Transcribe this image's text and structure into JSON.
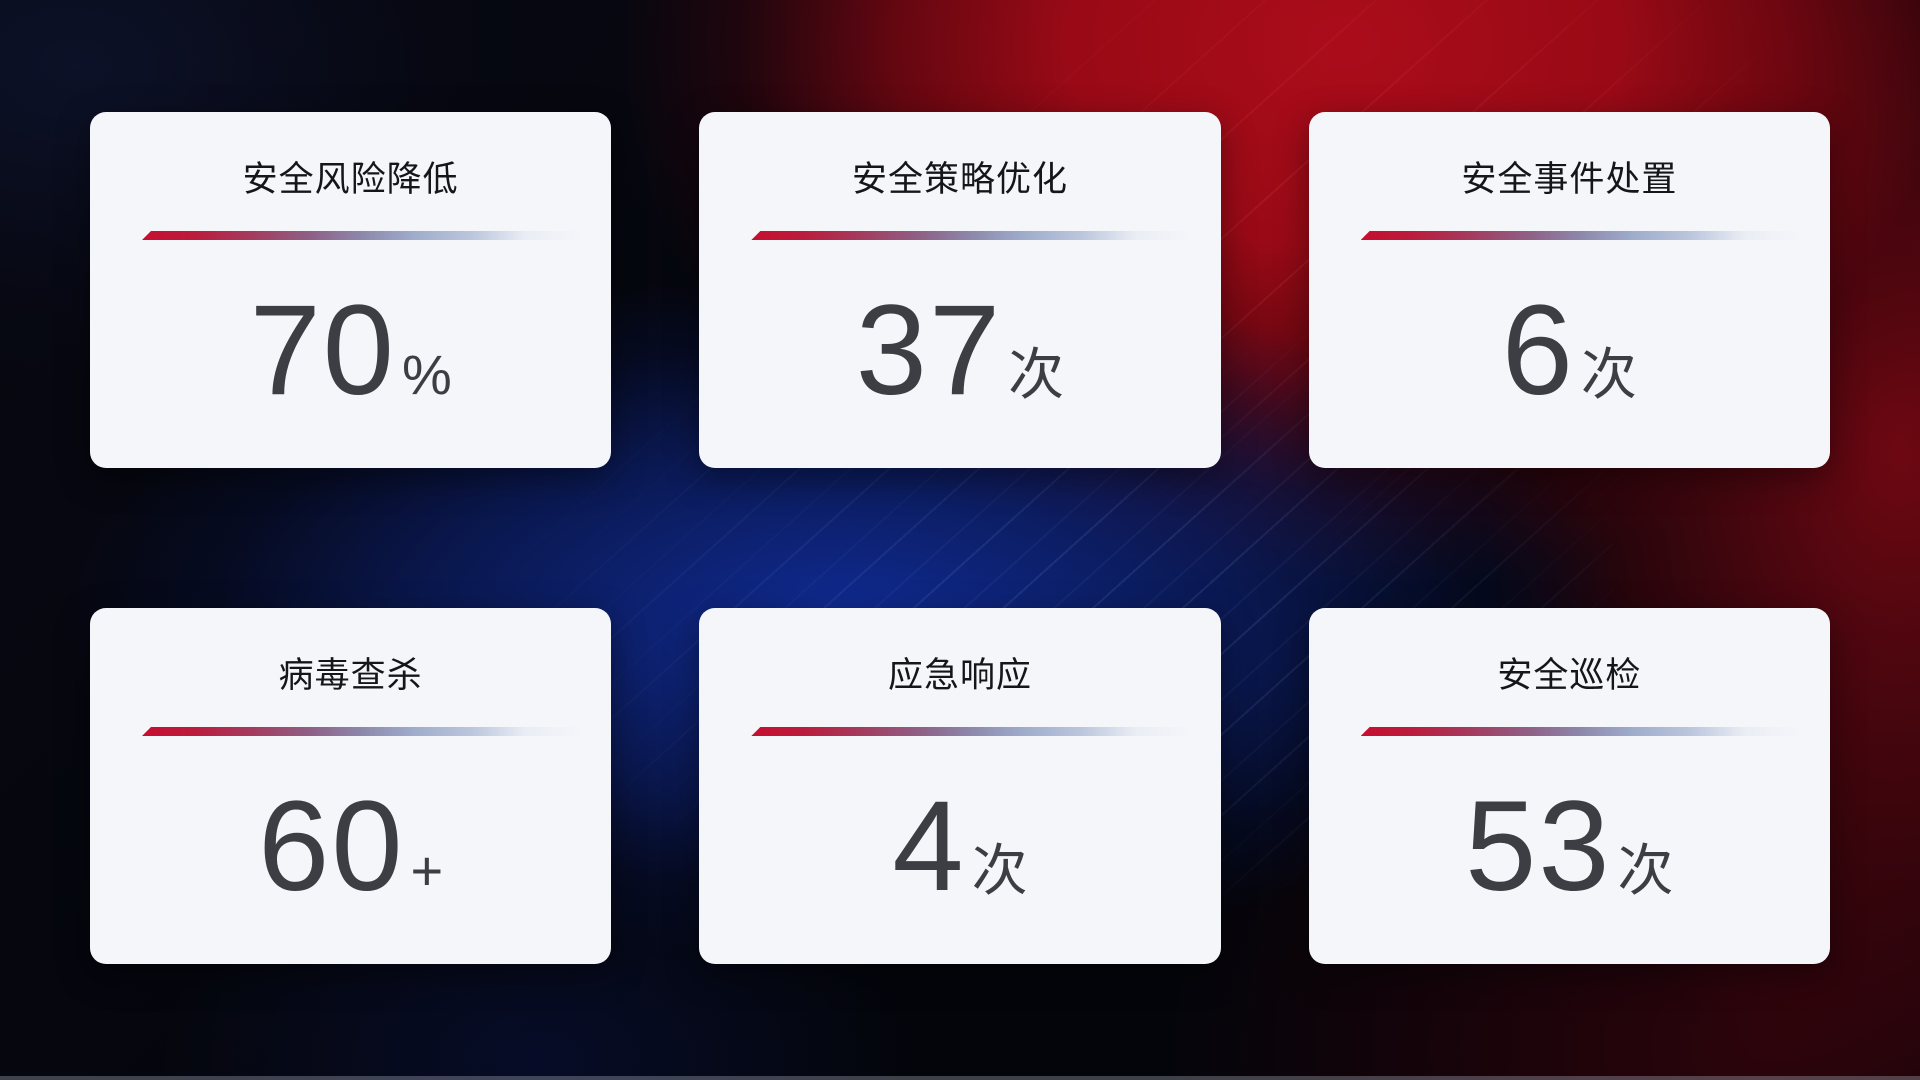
{
  "colors": {
    "background_dark": "#04050b",
    "background_red": "#9e0a16",
    "background_blue": "#112e9e",
    "card_background": "#f5f6fa",
    "title_text": "#15161a",
    "value_text": "#3d3e43",
    "divider_red": "#c60e2f",
    "divider_blue": "#9fadcc"
  },
  "cards": [
    {
      "title": "安全风险降低",
      "value": "70",
      "unit": "%"
    },
    {
      "title": "安全策略优化",
      "value": "37",
      "unit": "次"
    },
    {
      "title": "安全事件处置",
      "value": "6",
      "unit": "次"
    },
    {
      "title": "病毒查杀",
      "value": "60",
      "unit": "+"
    },
    {
      "title": "应急响应",
      "value": "4",
      "unit": "次"
    },
    {
      "title": "安全巡检",
      "value": "53",
      "unit": "次"
    }
  ]
}
